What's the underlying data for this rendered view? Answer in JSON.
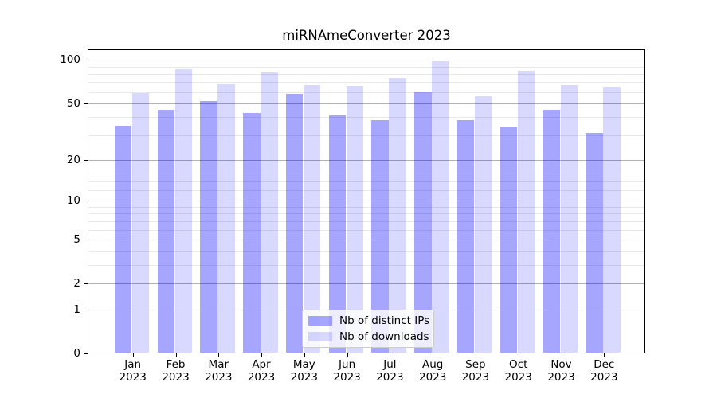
{
  "title": "miRNAmeConverter 2023",
  "chart_data": {
    "type": "bar",
    "title": "miRNAmeConverter 2023",
    "categories": [
      "Jan",
      "Feb",
      "Mar",
      "Apr",
      "May",
      "Jun",
      "Jul",
      "Aug",
      "Sep",
      "Oct",
      "Nov",
      "Dec"
    ],
    "category_year": "2023",
    "series": [
      {
        "name": "Nb of distinct IPs",
        "color": "rgba(0,0,255,0.35)",
        "values": [
          35,
          45,
          52,
          43,
          58,
          41,
          38,
          60,
          38,
          34,
          45,
          31
        ]
      },
      {
        "name": "Nb of downloads",
        "color": "rgba(0,0,255,0.15)",
        "values": [
          59,
          86,
          68,
          82,
          67,
          66,
          75,
          98,
          56,
          84,
          67,
          65
        ]
      }
    ],
    "xlabel": "",
    "ylabel": "",
    "yscale": "log1p",
    "ylim": [
      0,
      116
    ],
    "y_major_ticks": [
      100,
      50,
      20,
      10,
      5,
      2,
      1,
      0
    ],
    "y_minor_gridlines": [
      3,
      4,
      6,
      7,
      8,
      9,
      12,
      14,
      16,
      30,
      40,
      60,
      70,
      80,
      90
    ],
    "grid": true,
    "legend_position": "lower center"
  },
  "colors": {
    "major_grid": "#b0b0b0",
    "minor_grid": "#e8e8e8",
    "spine": "#000000",
    "legend_border": "#cccccc",
    "legend_bg": "rgba(255,255,255,0.8)"
  }
}
